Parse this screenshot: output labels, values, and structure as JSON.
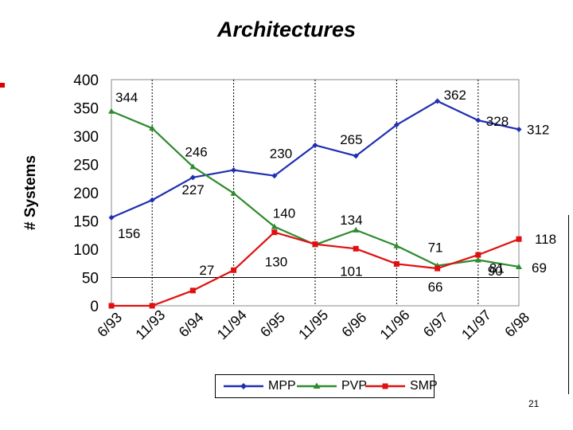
{
  "slide": {
    "page_number": "21"
  },
  "chart_data": {
    "type": "line",
    "title": "Architectures",
    "ylabel": "# Systems",
    "xlabel": "",
    "ylim": [
      0,
      400
    ],
    "yticks": [
      0,
      50,
      100,
      150,
      200,
      250,
      300,
      350,
      400
    ],
    "categories": [
      "6/93",
      "11/93",
      "6/94",
      "11/94",
      "6/95",
      "11/95",
      "6/96",
      "11/96",
      "6/97",
      "11/97",
      "6/98"
    ],
    "vertical_gridlines_at": [
      "11/93",
      "11/94",
      "11/95",
      "11/96",
      "11/97"
    ],
    "legend_position": "bottom",
    "series": [
      {
        "name": "MPP",
        "color": "#1f2fb0",
        "marker": "diamond",
        "values": [
          156,
          187,
          227,
          240,
          230,
          284,
          265,
          320,
          362,
          328,
          312
        ]
      },
      {
        "name": "PVP",
        "color": "#2e8b2e",
        "marker": "triangle",
        "values": [
          344,
          314,
          246,
          199,
          140,
          108,
          134,
          106,
          71,
          81,
          69
        ]
      },
      {
        "name": "SMP",
        "color": "#e01010",
        "marker": "square",
        "values": [
          0,
          0,
          27,
          63,
          130,
          109,
          101,
          74,
          66,
          90,
          118
        ]
      }
    ],
    "data_labels": [
      {
        "series": "PVP",
        "category": "6/93",
        "text": "344"
      },
      {
        "series": "MPP",
        "category": "6/93",
        "text": "156"
      },
      {
        "series": "PVP",
        "category": "6/94",
        "text": "246"
      },
      {
        "series": "MPP",
        "category": "6/94",
        "text": "227"
      },
      {
        "series": "SMP",
        "category": "6/94",
        "text": "27"
      },
      {
        "series": "MPP",
        "category": "6/95",
        "text": "230"
      },
      {
        "series": "PVP",
        "category": "6/95",
        "text": "140"
      },
      {
        "series": "SMP",
        "category": "6/95",
        "text": "130"
      },
      {
        "series": "MPP",
        "category": "6/96",
        "text": "265"
      },
      {
        "series": "PVP",
        "category": "6/96",
        "text": "134"
      },
      {
        "series": "SMP",
        "category": "6/96",
        "text": "101"
      },
      {
        "series": "MPP",
        "category": "6/97",
        "text": "362"
      },
      {
        "series": "PVP",
        "category": "6/97",
        "text": "71"
      },
      {
        "series": "SMP",
        "category": "6/97",
        "text": "66"
      },
      {
        "series": "MPP",
        "category": "11/97",
        "text": "328"
      },
      {
        "series": "SMP",
        "category": "11/97",
        "text": "90"
      },
      {
        "series": "PVP",
        "category": "11/97",
        "text": "81"
      },
      {
        "series": "MPP",
        "category": "6/98",
        "text": "312"
      },
      {
        "series": "SMP",
        "category": "6/98",
        "text": "118"
      },
      {
        "series": "PVP",
        "category": "6/98",
        "text": "69"
      }
    ]
  }
}
